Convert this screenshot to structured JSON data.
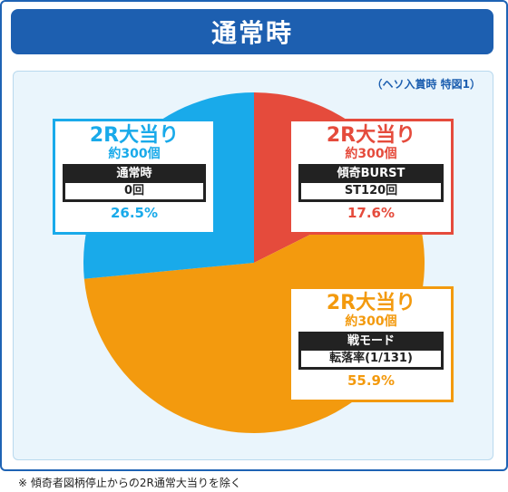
{
  "header": {
    "title": "通常時"
  },
  "condition": "（ヘソ入賞時 特図1）",
  "chart_data": {
    "type": "pie",
    "title": "通常時",
    "slices": [
      {
        "kind": "2R大当り",
        "amount": "約300個",
        "mode": "傾奇BURST",
        "st": "ST120回",
        "value": 17.6,
        "label": "17.6%",
        "color": "#e54b3c"
      },
      {
        "kind": "2R大当り",
        "amount": "約300個",
        "mode": "戦モード",
        "st": "転落率(1/131)",
        "value": 55.9,
        "label": "55.9%",
        "color": "#f39a0e"
      },
      {
        "kind": "2R大当り",
        "amount": "約300個",
        "mode": "通常時",
        "st": "0回",
        "value": 26.5,
        "label": "26.5%",
        "color": "#19aaea"
      }
    ]
  },
  "footnote": "※ 傾奇者図柄停止からの2R通常大当りを除く"
}
